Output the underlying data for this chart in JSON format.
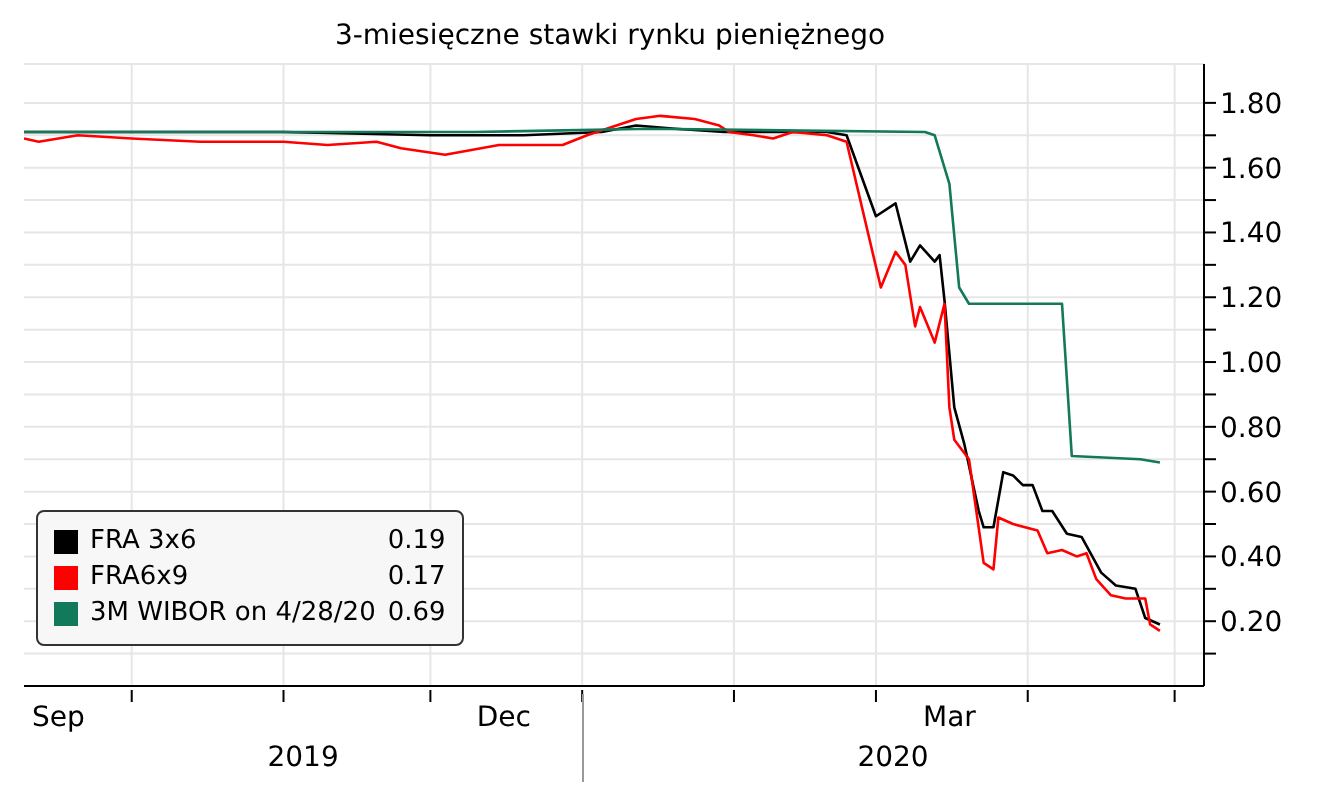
{
  "chart_data": {
    "type": "line",
    "title": "3-miesięczne stawki rynku pieniężnego",
    "xlim": [
      "2019-09-09",
      "2020-05-07"
    ],
    "xticks": [
      {
        "value": "2019-09-16",
        "label": "Sep"
      },
      {
        "value": "2019-10-01",
        "label": null
      },
      {
        "value": "2019-11-01",
        "label": null
      },
      {
        "value": "2019-12-01",
        "label": null
      },
      {
        "value": "2019-12-16",
        "label": "Dec"
      },
      {
        "value": "2020-01-01",
        "label": null
      },
      {
        "value": "2020-02-01",
        "label": null
      },
      {
        "value": "2020-03-01",
        "label": null
      },
      {
        "value": "2020-03-16",
        "label": "Mar"
      },
      {
        "value": "2020-04-01",
        "label": null
      },
      {
        "value": "2020-05-01",
        "label": null
      }
    ],
    "ylim": [
      0,
      1.92
    ],
    "yticks": [
      {
        "value": 0.1,
        "label": null
      },
      {
        "value": 0.2,
        "label": "0.20"
      },
      {
        "value": 0.3,
        "label": null
      },
      {
        "value": 0.4,
        "label": "0.40"
      },
      {
        "value": 0.5,
        "label": null
      },
      {
        "value": 0.6,
        "label": "0.60"
      },
      {
        "value": 0.7,
        "label": null
      },
      {
        "value": 0.8,
        "label": "0.80"
      },
      {
        "value": 0.9,
        "label": null
      },
      {
        "value": 1.0,
        "label": "1.00"
      },
      {
        "value": 1.1,
        "label": null
      },
      {
        "value": 1.2,
        "label": "1.20"
      },
      {
        "value": 1.3,
        "label": null
      },
      {
        "value": 1.4,
        "label": "1.40"
      },
      {
        "value": 1.5,
        "label": null
      },
      {
        "value": 1.6,
        "label": "1.60"
      },
      {
        "value": 1.7,
        "label": null
      },
      {
        "value": 1.8,
        "label": "1.80"
      }
    ],
    "grid": true,
    "legend": "bottom left",
    "annotations": [
      "2019",
      "2020",
      "0.19",
      "0.17",
      "0.69"
    ],
    "series": [
      {
        "name": "FRA 3x6",
        "color": "#000000",
        "x": [
          "2019-09-09",
          "2019-10-01",
          "2019-11-01",
          "2019-12-01",
          "2019-12-20",
          "2020-01-05",
          "2020-01-12",
          "2020-01-20",
          "2020-01-30",
          "2020-02-10",
          "2020-02-20",
          "2020-02-24",
          "2020-03-01",
          "2020-03-05",
          "2020-03-08",
          "2020-03-10",
          "2020-03-13",
          "2020-03-14",
          "2020-03-15",
          "2020-03-17",
          "2020-03-19",
          "2020-03-22",
          "2020-03-23",
          "2020-03-25",
          "2020-03-27",
          "2020-03-29",
          "2020-03-31",
          "2020-04-02",
          "2020-04-04",
          "2020-04-06",
          "2020-04-09",
          "2020-04-12",
          "2020-04-16",
          "2020-04-19",
          "2020-04-23",
          "2020-04-25",
          "2020-04-28"
        ],
        "values": [
          1.71,
          1.71,
          1.71,
          1.7,
          1.7,
          1.71,
          1.73,
          1.72,
          1.71,
          1.71,
          1.71,
          1.7,
          1.45,
          1.49,
          1.31,
          1.36,
          1.31,
          1.33,
          1.19,
          0.86,
          0.75,
          0.54,
          0.49,
          0.49,
          0.66,
          0.65,
          0.62,
          0.62,
          0.54,
          0.54,
          0.47,
          0.46,
          0.35,
          0.31,
          0.3,
          0.21,
          0.19
        ]
      },
      {
        "name": "FRA6x9",
        "color": "#ff0000",
        "x": [
          "2019-09-09",
          "2019-09-12",
          "2019-09-20",
          "2019-10-01",
          "2019-10-15",
          "2019-11-01",
          "2019-11-10",
          "2019-11-20",
          "2019-11-25",
          "2019-12-04",
          "2019-12-15",
          "2019-12-28",
          "2020-01-02",
          "2020-01-06",
          "2020-01-12",
          "2020-01-17",
          "2020-01-24",
          "2020-01-29",
          "2020-01-31",
          "2020-02-05",
          "2020-02-09",
          "2020-02-13",
          "2020-02-20",
          "2020-02-24",
          "2020-03-02",
          "2020-03-05",
          "2020-03-07",
          "2020-03-09",
          "2020-03-10",
          "2020-03-13",
          "2020-03-15",
          "2020-03-16",
          "2020-03-17",
          "2020-03-20",
          "2020-03-23",
          "2020-03-25",
          "2020-03-26",
          "2020-03-29",
          "2020-04-03",
          "2020-04-05",
          "2020-04-08",
          "2020-04-11",
          "2020-04-13",
          "2020-04-15",
          "2020-04-18",
          "2020-04-21",
          "2020-04-25",
          "2020-04-26",
          "2020-04-28"
        ],
        "values": [
          1.69,
          1.68,
          1.7,
          1.69,
          1.68,
          1.68,
          1.67,
          1.68,
          1.66,
          1.64,
          1.67,
          1.67,
          1.7,
          1.72,
          1.75,
          1.76,
          1.75,
          1.73,
          1.71,
          1.7,
          1.69,
          1.71,
          1.7,
          1.68,
          1.23,
          1.34,
          1.3,
          1.11,
          1.17,
          1.06,
          1.18,
          0.86,
          0.76,
          0.7,
          0.38,
          0.36,
          0.52,
          0.5,
          0.48,
          0.41,
          0.42,
          0.4,
          0.41,
          0.33,
          0.28,
          0.27,
          0.27,
          0.19,
          0.17
        ]
      },
      {
        "name": "3M WIBOR on 4/28/20",
        "color": "#13795b",
        "x": [
          "2019-09-09",
          "2019-12-10",
          "2020-01-15",
          "2020-03-11",
          "2020-03-13",
          "2020-03-16",
          "2020-03-18",
          "2020-03-20",
          "2020-04-08",
          "2020-04-10",
          "2020-04-24",
          "2020-04-28"
        ],
        "values": [
          1.71,
          1.71,
          1.72,
          1.71,
          1.7,
          1.55,
          1.23,
          1.18,
          1.18,
          0.71,
          0.7,
          0.69
        ]
      }
    ]
  }
}
